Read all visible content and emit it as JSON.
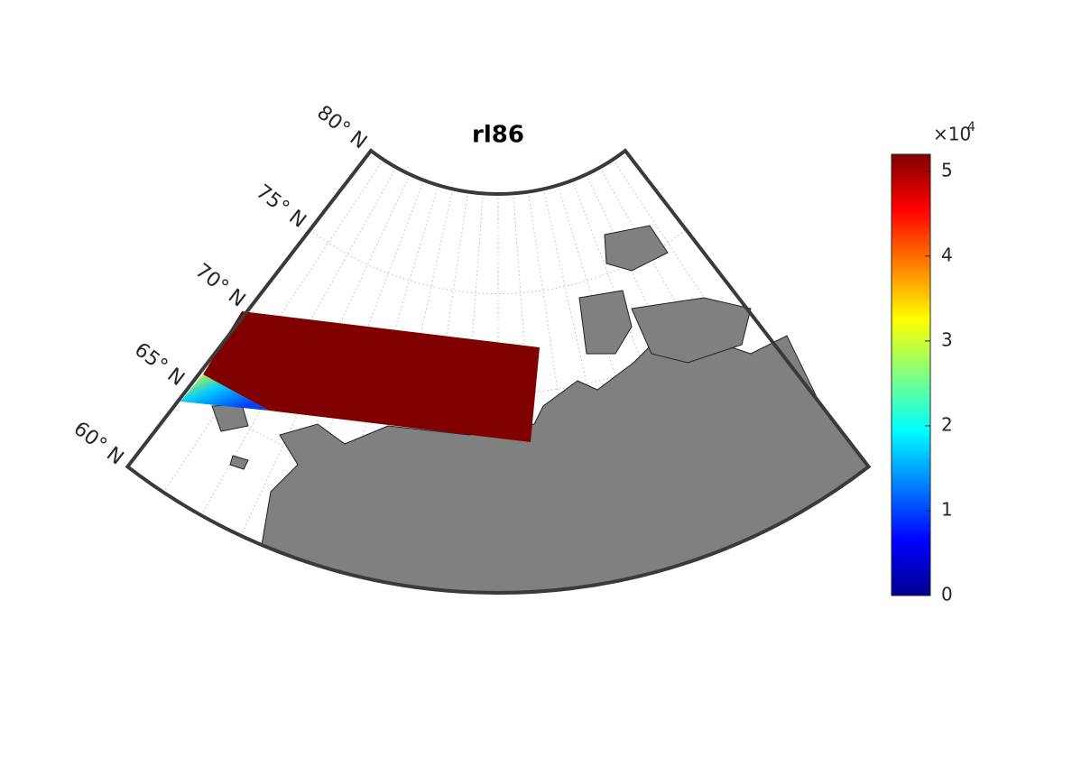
{
  "title": "rl86",
  "parallels": [
    {
      "value": 60,
      "label": "60° N"
    },
    {
      "value": 65,
      "label": "65° N"
    },
    {
      "value": 70,
      "label": "70° N"
    },
    {
      "value": 75,
      "label": "75° N"
    },
    {
      "value": 80,
      "label": "80° N"
    }
  ],
  "colorbar": {
    "lim": [
      0,
      5.2
    ],
    "ticks": [
      0,
      1,
      2,
      3,
      4,
      5
    ],
    "multiplier": "×10",
    "exponent": "4"
  }
}
